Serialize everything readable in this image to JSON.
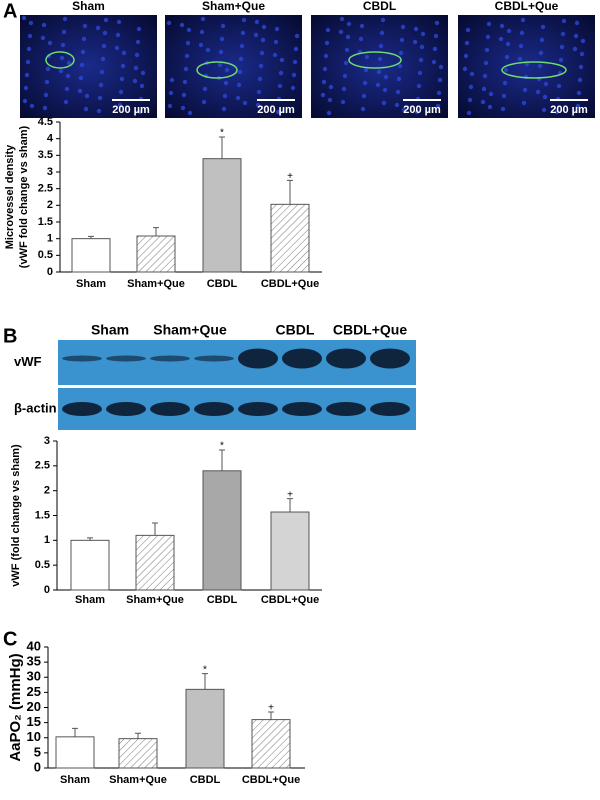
{
  "panel_labels": [
    "A",
    "B",
    "C"
  ],
  "micrographs": {
    "labels": [
      "Sham",
      "Sham+Que",
      "CBDL",
      "CBDL+Que"
    ],
    "scale_bar": "200 µm"
  },
  "blot": {
    "groups": [
      "Sham",
      "Sham+Que",
      "CBDL",
      "CBDL+Que"
    ],
    "rows": [
      "vWF",
      "β-actin"
    ]
  },
  "chart_data": [
    {
      "type": "bar",
      "ylabel": [
        "Microvessel density",
        "(vWF fold change vs sham)"
      ],
      "categories": [
        "Sham",
        "Sham+Que",
        "CBDL",
        "CBDL+Que"
      ],
      "values": [
        1.0,
        1.08,
        3.4,
        2.03
      ],
      "errors": [
        0.07,
        0.25,
        0.65,
        0.72
      ],
      "fills": [
        "#ffffff",
        "hatch",
        "#c0c0c0",
        "hatch"
      ],
      "annotations": [
        {
          "text": "*",
          "category": "CBDL"
        },
        {
          "text": "+",
          "category": "CBDL+Que"
        }
      ],
      "ylim": [
        0,
        4.5
      ],
      "yticks": [
        0,
        0.5,
        1,
        1.5,
        2,
        2.5,
        3,
        3.5,
        4,
        4.5
      ]
    },
    {
      "type": "bar",
      "ylabel": [
        "vWF (fold change vs sham)"
      ],
      "categories": [
        "Sham",
        "Sham+Que",
        "CBDL",
        "CBDL+Que"
      ],
      "values": [
        1.0,
        1.1,
        2.4,
        1.57
      ],
      "errors": [
        0.05,
        0.25,
        0.42,
        0.27
      ],
      "fills": [
        "#ffffff",
        "hatch",
        "#a8a8a8",
        "#d4d4d4"
      ],
      "annotations": [
        {
          "text": "*",
          "category": "CBDL"
        },
        {
          "text": "+",
          "category": "CBDL+Que"
        }
      ],
      "ylim": [
        0,
        3
      ],
      "yticks": [
        0,
        0.5,
        1,
        1.5,
        2,
        2.5,
        3
      ]
    },
    {
      "type": "bar",
      "ylabel": [
        "AaPO₂ (mmHg)"
      ],
      "categories": [
        "Sham",
        "Sham+Que",
        "CBDL",
        "CBDL+Que"
      ],
      "values": [
        10.3,
        9.7,
        26,
        16
      ],
      "errors": [
        2.8,
        1.8,
        5.2,
        2.5
      ],
      "fills": [
        "#ffffff",
        "hatch",
        "#c0c0c0",
        "hatch"
      ],
      "annotations": [
        {
          "text": "*",
          "category": "CBDL"
        },
        {
          "text": "+",
          "category": "CBDL+Que"
        }
      ],
      "ylim": [
        0,
        40
      ],
      "yticks": [
        0,
        5,
        10,
        15,
        20,
        25,
        30,
        35,
        40
      ]
    }
  ]
}
